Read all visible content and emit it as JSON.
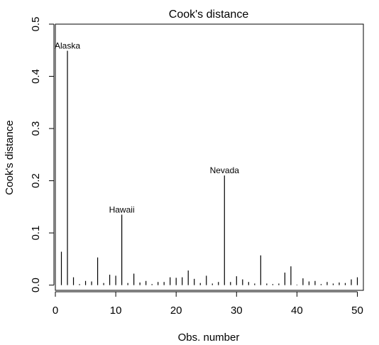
{
  "chart_data": {
    "type": "bar",
    "title": "Cook's distance",
    "xlabel": "Obs. number",
    "ylabel": "Cook's distance",
    "xlim": [
      0,
      51
    ],
    "ylim": [
      -0.01,
      0.5
    ],
    "x_ticks": [
      0,
      10,
      20,
      30,
      40,
      50
    ],
    "x_tick_labels": [
      "0",
      "10",
      "20",
      "30",
      "40",
      "50"
    ],
    "y_ticks": [
      0.0,
      0.1,
      0.2,
      0.3,
      0.4,
      0.5
    ],
    "y_tick_labels": [
      "0.0",
      "0.1",
      "0.2",
      "0.3",
      "0.4",
      "0.5"
    ],
    "grid": false,
    "x": [
      1,
      2,
      3,
      4,
      5,
      6,
      7,
      8,
      9,
      10,
      11,
      12,
      13,
      14,
      15,
      16,
      17,
      18,
      19,
      20,
      21,
      22,
      23,
      24,
      25,
      26,
      27,
      28,
      29,
      30,
      31,
      32,
      33,
      34,
      35,
      36,
      37,
      38,
      39,
      40,
      41,
      42,
      43,
      44,
      45,
      46,
      47,
      48,
      49,
      50
    ],
    "values": [
      0.064,
      0.449,
      0.015,
      0.002,
      0.008,
      0.007,
      0.053,
      0.004,
      0.02,
      0.018,
      0.135,
      0.004,
      0.022,
      0.005,
      0.008,
      0.002,
      0.006,
      0.006,
      0.015,
      0.014,
      0.015,
      0.028,
      0.012,
      0.004,
      0.018,
      0.003,
      0.006,
      0.21,
      0.006,
      0.017,
      0.011,
      0.006,
      0.003,
      0.057,
      0.003,
      0.002,
      0.003,
      0.024,
      0.036,
      0.001,
      0.013,
      0.007,
      0.008,
      0.002,
      0.006,
      0.003,
      0.005,
      0.004,
      0.011,
      0.015
    ],
    "annotations": [
      {
        "label": "Alaska",
        "x": 2,
        "y": 0.449
      },
      {
        "label": "Hawaii",
        "x": 11,
        "y": 0.135
      },
      {
        "label": "Nevada",
        "x": 28,
        "y": 0.21
      }
    ]
  }
}
